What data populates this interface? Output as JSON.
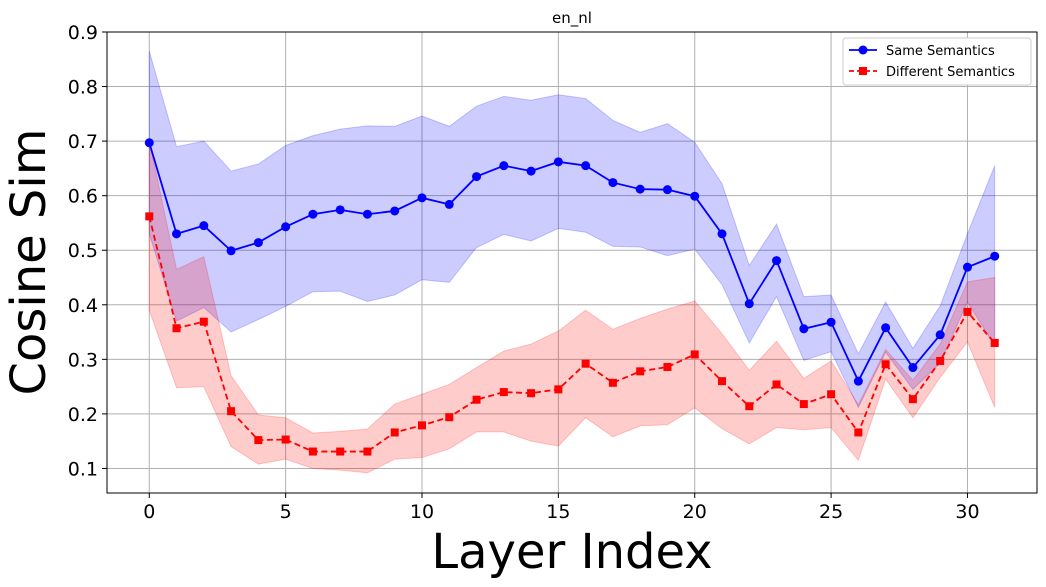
{
  "chart_data": {
    "type": "line",
    "title": "en_nl",
    "xlabel": "Layer Index",
    "ylabel": "Cosine Sim",
    "xlim": [
      -1.55,
      32.55
    ],
    "ylim": [
      0.055,
      0.9
    ],
    "xticks": [
      0,
      5,
      10,
      15,
      20,
      25,
      30
    ],
    "yticks": [
      0.1,
      0.2,
      0.3,
      0.4,
      0.5,
      0.6,
      0.7,
      0.8,
      0.9
    ],
    "grid": true,
    "legend_position": "top-right",
    "x": [
      0,
      1,
      2,
      3,
      4,
      5,
      6,
      7,
      8,
      9,
      10,
      11,
      12,
      13,
      14,
      15,
      16,
      17,
      18,
      19,
      20,
      21,
      22,
      23,
      24,
      25,
      26,
      27,
      28,
      29,
      30,
      31
    ],
    "series": [
      {
        "name": "Same Semantics",
        "color": "#0000ff",
        "marker": "circle",
        "linestyle": "solid",
        "values": [
          0.697,
          0.53,
          0.545,
          0.499,
          0.514,
          0.543,
          0.566,
          0.574,
          0.566,
          0.572,
          0.596,
          0.584,
          0.635,
          0.655,
          0.645,
          0.662,
          0.655,
          0.624,
          0.612,
          0.611,
          0.599,
          0.53,
          0.402,
          0.481,
          0.356,
          0.368,
          0.26,
          0.358,
          0.285,
          0.345,
          0.469,
          0.489
        ],
        "upper": [
          0.865,
          0.69,
          0.7,
          0.645,
          0.658,
          0.692,
          0.71,
          0.722,
          0.728,
          0.727,
          0.746,
          0.727,
          0.764,
          0.782,
          0.775,
          0.785,
          0.778,
          0.738,
          0.716,
          0.732,
          0.698,
          0.622,
          0.472,
          0.548,
          0.415,
          0.418,
          0.31,
          0.405,
          0.32,
          0.398,
          0.53,
          0.655
        ],
        "lower": [
          0.53,
          0.37,
          0.395,
          0.35,
          0.373,
          0.397,
          0.424,
          0.425,
          0.406,
          0.418,
          0.446,
          0.441,
          0.505,
          0.529,
          0.517,
          0.54,
          0.533,
          0.507,
          0.506,
          0.49,
          0.502,
          0.437,
          0.33,
          0.415,
          0.298,
          0.314,
          0.212,
          0.313,
          0.245,
          0.293,
          0.405,
          0.325
        ]
      },
      {
        "name": "Different Semantics",
        "color": "#ff0000",
        "marker": "square",
        "linestyle": "dashed",
        "values": [
          0.562,
          0.357,
          0.369,
          0.205,
          0.152,
          0.153,
          0.131,
          0.131,
          0.131,
          0.166,
          0.179,
          0.194,
          0.226,
          0.24,
          0.238,
          0.245,
          0.292,
          0.257,
          0.278,
          0.286,
          0.309,
          0.26,
          0.214,
          0.254,
          0.218,
          0.236,
          0.166,
          0.291,
          0.227,
          0.297,
          0.387,
          0.33
        ],
        "upper": [
          0.7,
          0.465,
          0.488,
          0.27,
          0.198,
          0.193,
          0.165,
          0.168,
          0.172,
          0.218,
          0.236,
          0.254,
          0.285,
          0.315,
          0.328,
          0.352,
          0.39,
          0.355,
          0.375,
          0.392,
          0.407,
          0.347,
          0.28,
          0.333,
          0.265,
          0.297,
          0.217,
          0.318,
          0.262,
          0.328,
          0.442,
          0.45
        ],
        "lower": [
          0.39,
          0.248,
          0.25,
          0.14,
          0.108,
          0.117,
          0.1,
          0.097,
          0.092,
          0.117,
          0.12,
          0.136,
          0.167,
          0.167,
          0.15,
          0.141,
          0.193,
          0.158,
          0.178,
          0.18,
          0.211,
          0.173,
          0.145,
          0.175,
          0.171,
          0.175,
          0.115,
          0.264,
          0.193,
          0.267,
          0.332,
          0.212
        ]
      }
    ]
  }
}
